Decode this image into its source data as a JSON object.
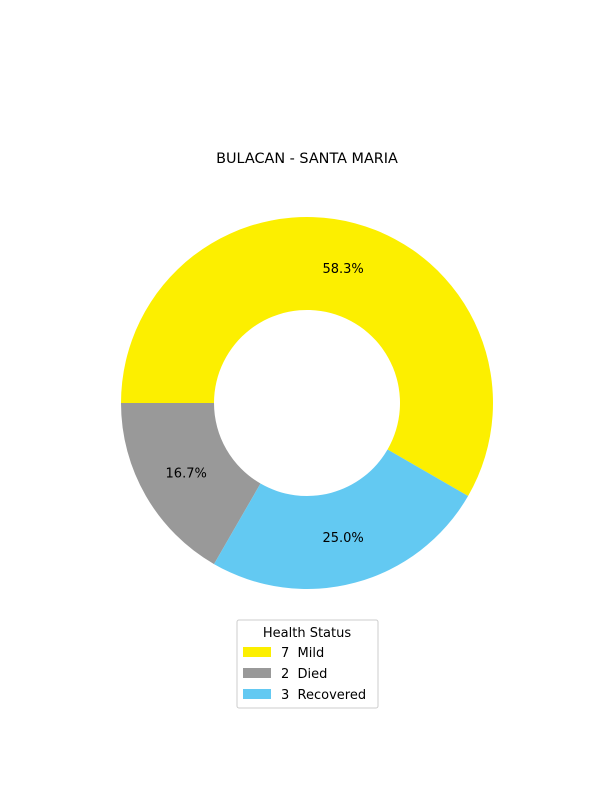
{
  "chart_data": {
    "type": "pie",
    "variant": "donut",
    "title": "BULACAN - SANTA MARIA",
    "slices": [
      {
        "label": "Mild",
        "count": 7,
        "legend_label": "7  Mild",
        "percent": 58.3,
        "pct_label": "58.3%",
        "color": "#fcef00"
      },
      {
        "label": "Died",
        "count": 2,
        "legend_label": "2  Died",
        "percent": 16.7,
        "pct_label": "16.7%",
        "color": "#999999"
      },
      {
        "label": "Recovered",
        "count": 3,
        "legend_label": "3  Recovered",
        "percent": 25.0,
        "pct_label": "25.0%",
        "color": "#63c9f2"
      }
    ],
    "legend": {
      "title": "Health Status",
      "placement": "bottom-center"
    }
  }
}
